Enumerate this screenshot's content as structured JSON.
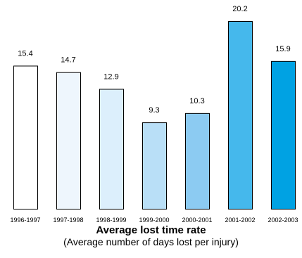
{
  "chart_data": {
    "type": "bar",
    "title": "Average lost time rate",
    "subtitle": "(Average number of days lost per injury)",
    "categories": [
      "1996-1997",
      "1997-1998",
      "1998-1999",
      "1999-2000",
      "2000-2001",
      "2001-2002",
      "2002-2003"
    ],
    "values": [
      15.4,
      14.7,
      12.9,
      9.3,
      10.3,
      20.2,
      15.9
    ],
    "value_labels": [
      "15.4",
      "14.7",
      "12.9",
      "9.3",
      "10.3",
      "20.2",
      "15.9"
    ],
    "bar_colors": [
      "#ffffff",
      "#eef6fd",
      "#dceffc",
      "#b9dff7",
      "#8ccbf2",
      "#45b8ec",
      "#00a2e3"
    ],
    "border_color": "#000000",
    "ylim": [
      0,
      20.2
    ],
    "grid": false,
    "legend": "none"
  }
}
